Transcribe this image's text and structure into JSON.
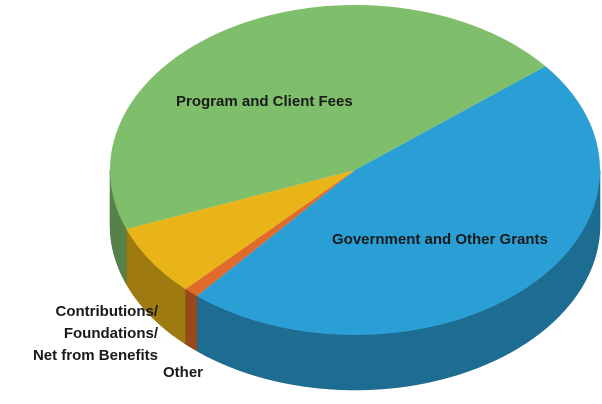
{
  "chart_data": {
    "type": "pie3d",
    "categories": [
      "Government and Other Grants",
      "Other",
      "Contributions/\nFoundations/\nNet from Benefits",
      "Program and Client Fees"
    ],
    "values": [
      47,
      1,
      7,
      45
    ],
    "colors": [
      "#2a9fd6",
      "#e06a2a",
      "#e8b418",
      "#7fbf6b"
    ]
  }
}
